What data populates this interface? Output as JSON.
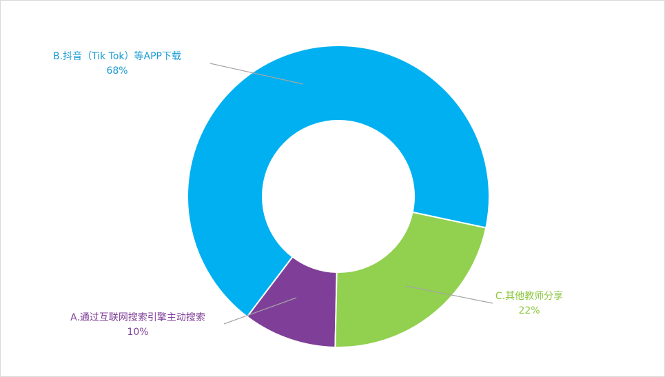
{
  "chart_data": {
    "type": "donut",
    "categories": [
      "A.通过互联网搜索引擎主动搜索",
      "B.抖音（Tik Tok）等APP下载",
      "C.其他教师分享"
    ],
    "values": [
      10,
      68,
      22
    ],
    "value_labels": [
      "10%",
      "68%",
      "22%"
    ],
    "colors": [
      "#7f3f98",
      "#00b0f0",
      "#92d050"
    ],
    "label_colors": [
      "#7f3f98",
      "#1a9bd3",
      "#8cc63f"
    ]
  }
}
